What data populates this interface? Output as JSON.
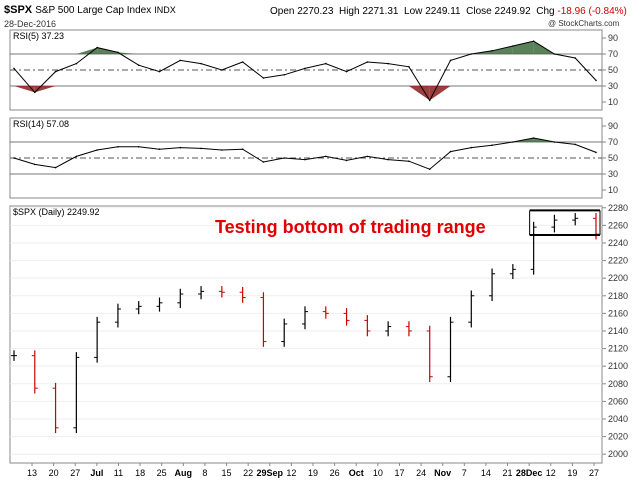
{
  "header": {
    "symbol": "$SPX",
    "name": "S&P 500 Large Cap Index",
    "exchange": "INDX",
    "date": "28-Dec-2016",
    "watermark": "@ StockCharts.com",
    "open_label": "Open",
    "open": "2270.23",
    "high_label": "High",
    "high": "2271.31",
    "low_label": "Low",
    "low": "2249.11",
    "close_label": "Close",
    "close": "2249.92",
    "chg_label": "Chg",
    "chg": "-18.96 (-0.84%)",
    "chg_color": "#cc0000"
  },
  "annotation": {
    "text": "Testing bottom of trading range",
    "color": "#e00000"
  },
  "chart_data": [
    {
      "type": "line",
      "panel": "RSI(5)",
      "legend": "RSI(5) 37.23",
      "ylim": [
        0,
        100
      ],
      "y_ticks": [
        10,
        30,
        50,
        70,
        90
      ],
      "reference_lines": [
        30,
        50,
        70
      ],
      "overbought_fill": "#3d6b3d",
      "oversold_fill": "#8b1c1c",
      "x": [
        "Jun 13",
        "Jun 20",
        "Jun 27",
        "Jul 5",
        "Jul 11",
        "Jul 18",
        "Jul 25",
        "Aug 1",
        "Aug 8",
        "Aug 15",
        "Aug 22",
        "Aug 29",
        "Sep 6",
        "Sep 12",
        "Sep 19",
        "Sep 26",
        "Oct 3",
        "Oct 10",
        "Oct 17",
        "Oct 24",
        "Oct 31",
        "Nov 7",
        "Nov 14",
        "Nov 21",
        "Nov 28",
        "Dec 5",
        "Dec 12",
        "Dec 19",
        "Dec 28"
      ],
      "values": [
        52,
        22,
        48,
        58,
        78,
        72,
        56,
        48,
        62,
        58,
        50,
        60,
        40,
        44,
        52,
        58,
        48,
        60,
        58,
        54,
        12,
        62,
        70,
        74,
        80,
        86,
        70,
        65,
        37
      ]
    },
    {
      "type": "line",
      "panel": "RSI(14)",
      "legend": "RSI(14) 57.08",
      "ylim": [
        0,
        100
      ],
      "y_ticks": [
        10,
        30,
        50,
        70,
        90
      ],
      "reference_lines": [
        30,
        50,
        70
      ],
      "overbought_fill": "#3d6b3d",
      "x": [
        "Jun 13",
        "Jun 20",
        "Jun 27",
        "Jul 5",
        "Jul 11",
        "Jul 18",
        "Jul 25",
        "Aug 1",
        "Aug 8",
        "Aug 15",
        "Aug 22",
        "Aug 29",
        "Sep 6",
        "Sep 12",
        "Sep 19",
        "Sep 26",
        "Oct 3",
        "Oct 10",
        "Oct 17",
        "Oct 24",
        "Oct 31",
        "Nov 7",
        "Nov 14",
        "Nov 21",
        "Nov 28",
        "Dec 5",
        "Dec 12",
        "Dec 19",
        "Dec 28"
      ],
      "values": [
        50,
        42,
        38,
        52,
        60,
        64,
        64,
        61,
        63,
        62,
        60,
        61,
        45,
        50,
        48,
        52,
        47,
        52,
        48,
        46,
        36,
        58,
        63,
        66,
        70,
        75,
        70,
        67,
        57
      ]
    },
    {
      "type": "ohlc",
      "panel": "$SPX (Daily)",
      "legend": "$SPX (Daily) 2249.92",
      "ylim": [
        1990,
        2282
      ],
      "y_ticks": [
        2000,
        2020,
        2040,
        2060,
        2080,
        2100,
        2120,
        2140,
        2160,
        2180,
        2200,
        2220,
        2240,
        2260,
        2280
      ],
      "up_color": "#000000",
      "down_color": "#cc0000",
      "x_tick_labels": [
        "13",
        "20",
        "27",
        "Jul",
        "11",
        "18",
        "25",
        "Aug",
        "8",
        "15",
        "22",
        "29Sep",
        "12",
        "19",
        "26",
        "Oct",
        "10",
        "17",
        "24",
        "Nov",
        "7",
        "14",
        "21",
        "28Dec",
        "12",
        "19",
        "27"
      ],
      "trading_range": {
        "low": 2249,
        "high": 2277
      },
      "x": [
        "Jun 13",
        "Jun 20",
        "Jun 27",
        "Jul 5",
        "Jul 11",
        "Jul 18",
        "Jul 25",
        "Aug 1",
        "Aug 8",
        "Aug 15",
        "Aug 22",
        "Aug 29",
        "Sep 6",
        "Sep 12",
        "Sep 19",
        "Sep 26",
        "Oct 3",
        "Oct 10",
        "Oct 17",
        "Oct 24",
        "Oct 31",
        "Nov 7",
        "Nov 14",
        "Nov 21",
        "Nov 28",
        "Dec 5",
        "Dec 12",
        "Dec 19",
        "Dec 28"
      ],
      "values": [
        2112,
        2075,
        2030,
        2110,
        2150,
        2165,
        2168,
        2172,
        2182,
        2185,
        2184,
        2178,
        2128,
        2148,
        2162,
        2160,
        2152,
        2140,
        2145,
        2140,
        2088,
        2150,
        2180,
        2205,
        2210,
        2258,
        2266,
        2268,
        2250
      ]
    }
  ]
}
